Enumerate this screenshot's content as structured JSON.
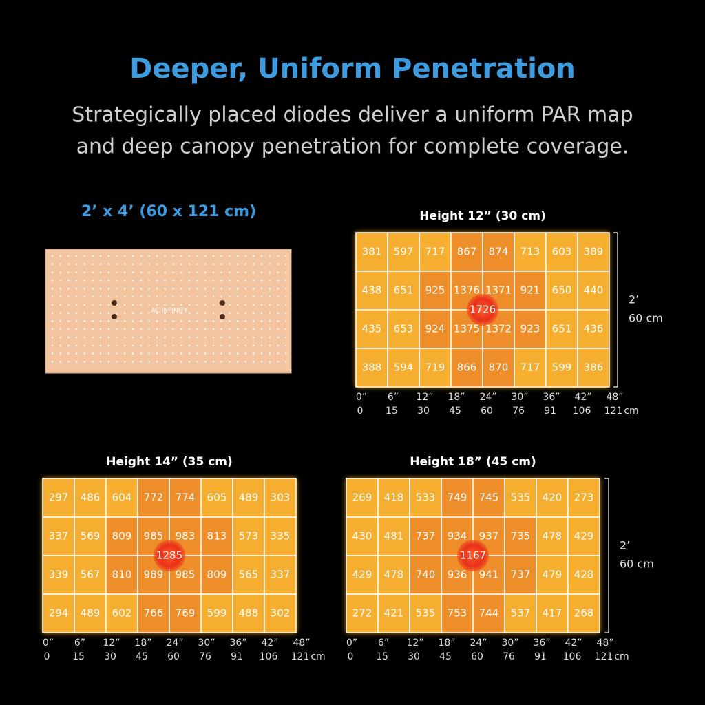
{
  "header": {
    "title": "Deeper, Uniform Penetration",
    "subtitle_lines": [
      "Strategically placed diodes deliver a uniform PAR map",
      "and deep canopy penetration for complete coverage."
    ]
  },
  "product": {
    "label": "2’ x 4’ (60 x 121 cm)",
    "brand": "AC INFINITY"
  },
  "x_labels_in": [
    "0”",
    "6”",
    "12”",
    "18”",
    "24”",
    "30”",
    "36”",
    "42”",
    "48”"
  ],
  "x_labels_cm": [
    "0",
    "15",
    "30",
    "45",
    "60",
    "76",
    "91",
    "106",
    "121"
  ],
  "x_unit": "cm",
  "side_label": [
    "2’",
    "60 cm"
  ],
  "maps": [
    {
      "title": "Height 12” (30 cm)",
      "center": 1726,
      "side": true,
      "rows": [
        [
          381,
          597,
          717,
          867,
          874,
          713,
          603,
          389
        ],
        [
          438,
          651,
          925,
          1376,
          1371,
          921,
          650,
          440
        ],
        [
          435,
          653,
          924,
          1375,
          1372,
          923,
          651,
          436
        ],
        [
          388,
          594,
          719,
          866,
          870,
          717,
          599,
          386
        ]
      ]
    },
    {
      "title": "Height 14” (35 cm)",
      "center": 1285,
      "side": false,
      "rows": [
        [
          297,
          486,
          604,
          772,
          774,
          605,
          489,
          303
        ],
        [
          337,
          569,
          809,
          985,
          983,
          813,
          573,
          335
        ],
        [
          339,
          567,
          810,
          989,
          985,
          809,
          565,
          337
        ],
        [
          294,
          489,
          602,
          766,
          769,
          599,
          488,
          302
        ]
      ]
    },
    {
      "title": "Height 18” (45 cm)",
      "center": 1167,
      "side": true,
      "rows": [
        [
          269,
          418,
          533,
          749,
          745,
          535,
          420,
          273
        ],
        [
          430,
          481,
          737,
          934,
          937,
          735,
          478,
          429
        ],
        [
          429,
          478,
          740,
          936,
          941,
          737,
          479,
          428
        ],
        [
          272,
          421,
          535,
          753,
          744,
          537,
          417,
          268
        ]
      ]
    }
  ]
}
